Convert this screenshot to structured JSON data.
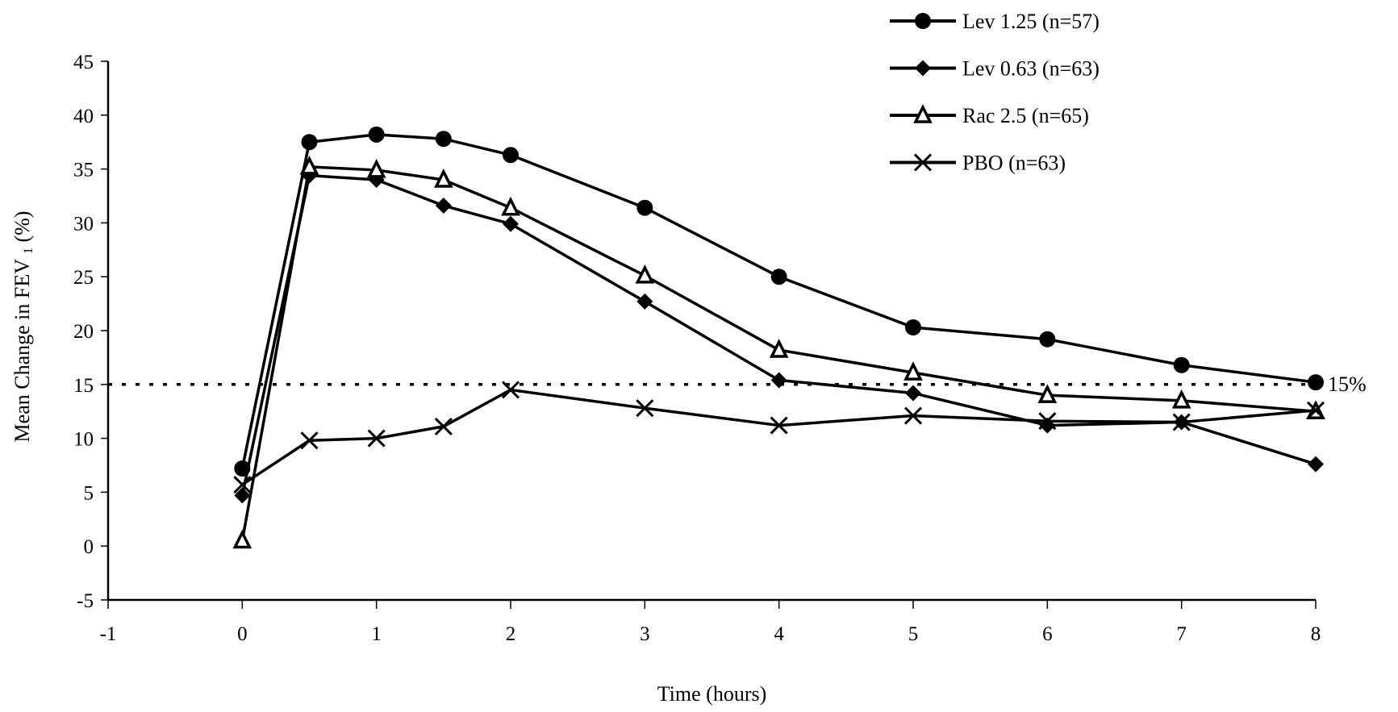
{
  "chart_data": {
    "type": "line",
    "title": "",
    "xlabel": "Time (hours)",
    "ylabel": "Mean Change in FEV",
    "ylabel_subscript": "1",
    "ylabel_suffix": " (%)",
    "xlim": [
      -1,
      8
    ],
    "ylim": [
      -5,
      45
    ],
    "x_ticks": [
      -1,
      0,
      1,
      2,
      3,
      4,
      5,
      6,
      7,
      8
    ],
    "y_ticks": [
      -5,
      0,
      5,
      10,
      15,
      20,
      25,
      30,
      35,
      40,
      45
    ],
    "x_tick_labels": [
      "-1",
      "0",
      "1",
      "2",
      "3",
      "4",
      "5",
      "6",
      "7",
      "8"
    ],
    "y_tick_labels": [
      "-5",
      "0",
      "5",
      "10",
      "15",
      "20",
      "25",
      "30",
      "35",
      "40",
      "45"
    ],
    "grid": false,
    "legend_position": "top-right",
    "x": [
      0,
      0.5,
      1,
      1.5,
      2,
      3,
      4,
      5,
      6,
      7,
      8
    ],
    "series": [
      {
        "name": "Lev 1.25 (n=57)",
        "marker": "circle-filled",
        "values": [
          7.2,
          37.5,
          38.2,
          37.8,
          36.3,
          31.4,
          25.0,
          20.3,
          19.2,
          16.8,
          15.2
        ]
      },
      {
        "name": "Lev 0.63 (n=63)",
        "marker": "diamond-filled",
        "values": [
          4.7,
          34.4,
          34.0,
          31.6,
          29.9,
          22.7,
          15.4,
          14.2,
          11.2,
          11.5,
          7.6
        ]
      },
      {
        "name": "Rac 2.5 (n=65)",
        "marker": "triangle-open",
        "values": [
          0.5,
          35.2,
          34.9,
          34.0,
          31.4,
          25.1,
          18.2,
          16.1,
          14.0,
          13.5,
          12.5
        ]
      },
      {
        "name": "PBO (n=63)",
        "marker": "x",
        "values": [
          5.7,
          9.8,
          10.0,
          11.1,
          14.5,
          12.8,
          11.2,
          12.1,
          11.6,
          11.5,
          12.6
        ]
      }
    ],
    "reference_line": {
      "y": 15,
      "style": "dotted",
      "label": "15%"
    },
    "colors": {
      "line": "#000000",
      "background": "#ffffff"
    }
  }
}
